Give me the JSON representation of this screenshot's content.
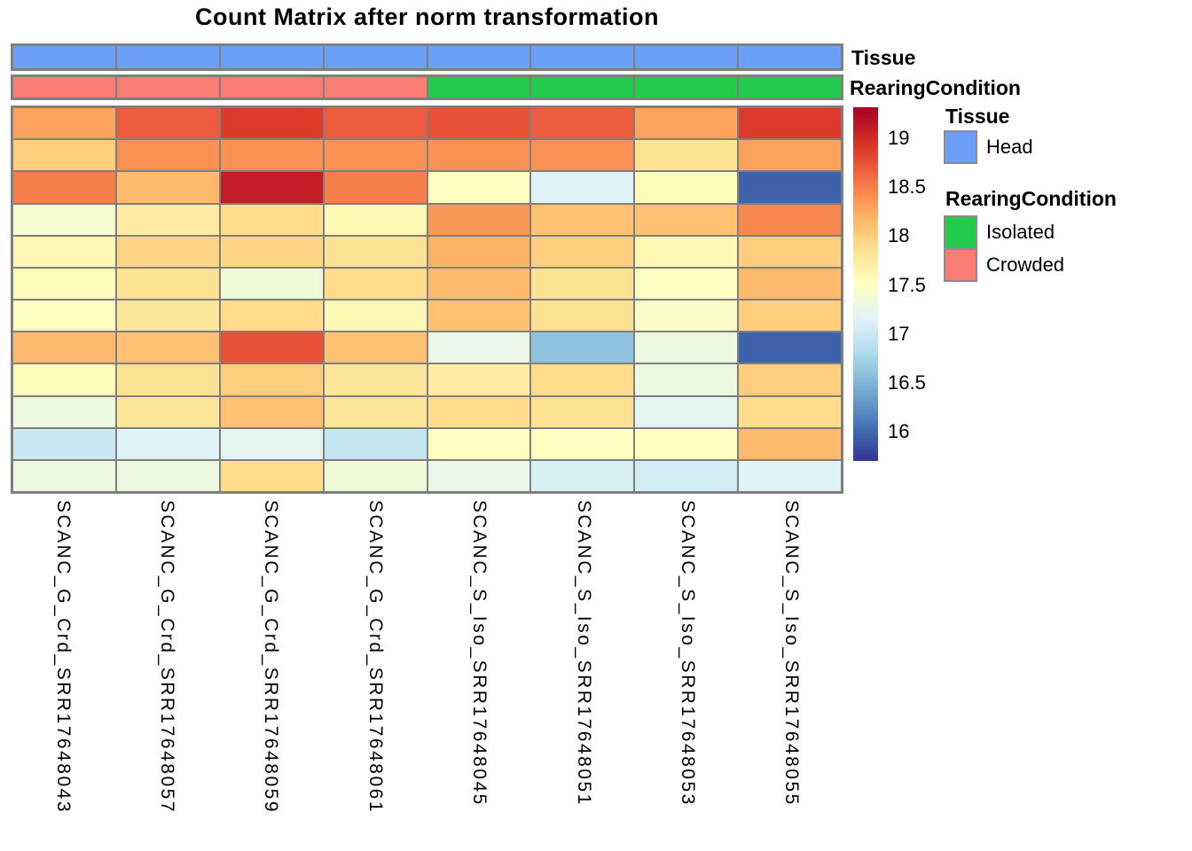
{
  "title": "Count Matrix after norm transformation",
  "annotation_labels": {
    "tissue": "Tissue",
    "rearing": "RearingCondition"
  },
  "annotation_colors": {
    "Head": "#6B9FF8",
    "Isolated": "#21CC4D",
    "Crowded": "#F97D72"
  },
  "grid_color": "#7F7F7F",
  "legend": {
    "tissue_title": "Tissue",
    "tissue_items": [
      {
        "label": "Head",
        "color": "#6B9FF8"
      }
    ],
    "rearing_title": "RearingCondition",
    "rearing_items": [
      {
        "label": "Isolated",
        "color": "#21CC4D"
      },
      {
        "label": "Crowded",
        "color": "#F97D72"
      }
    ]
  },
  "colorbar": {
    "tick_labels": [
      "19",
      "18.5",
      "18",
      "17.5",
      "17",
      "16.5",
      "16"
    ],
    "tick_values": [
      19,
      18.5,
      18,
      17.5,
      17,
      16.5,
      16
    ]
  },
  "chart_data": {
    "type": "heatmap",
    "title": "Count Matrix after norm transformation",
    "columns": [
      "SCANC_G_Crd_SRR17648043",
      "SCANC_G_Crd_SRR17648057",
      "SCANC_G_Crd_SRR17648059",
      "SCANC_G_Crd_SRR17648061",
      "SCANC_S_Iso_SRR17648045",
      "SCANC_S_Iso_SRR17648051",
      "SCANC_S_Iso_SRR17648053",
      "SCANC_S_Iso_SRR17648055"
    ],
    "column_annotations": {
      "Tissue": [
        "Head",
        "Head",
        "Head",
        "Head",
        "Head",
        "Head",
        "Head",
        "Head"
      ],
      "RearingCondition": [
        "Crowded",
        "Crowded",
        "Crowded",
        "Crowded",
        "Isolated",
        "Isolated",
        "Isolated",
        "Isolated"
      ]
    },
    "n_rows": 12,
    "rows_unlabeled": true,
    "values": [
      [
        18.3,
        18.7,
        18.9,
        18.7,
        18.75,
        18.7,
        18.3,
        18.9
      ],
      [
        18.0,
        18.4,
        18.4,
        18.4,
        18.4,
        18.4,
        17.85,
        18.3
      ],
      [
        18.5,
        18.15,
        19.1,
        18.5,
        17.5,
        17.15,
        17.55,
        15.95
      ],
      [
        17.4,
        17.75,
        17.9,
        17.6,
        18.35,
        18.1,
        18.1,
        18.45
      ],
      [
        17.6,
        17.95,
        17.95,
        17.85,
        18.2,
        18.0,
        17.6,
        18.0
      ],
      [
        17.55,
        17.85,
        17.35,
        17.9,
        18.15,
        17.85,
        17.5,
        18.15
      ],
      [
        17.5,
        17.8,
        17.9,
        17.6,
        18.1,
        17.85,
        17.45,
        18.0
      ],
      [
        18.15,
        18.1,
        18.75,
        18.1,
        17.25,
        16.6,
        17.3,
        15.95
      ],
      [
        17.55,
        17.85,
        18.0,
        17.8,
        17.75,
        17.9,
        17.3,
        18.0
      ],
      [
        17.3,
        17.8,
        18.1,
        17.8,
        17.9,
        17.85,
        17.2,
        17.9
      ],
      [
        17.0,
        17.15,
        17.2,
        16.95,
        17.5,
        17.5,
        17.5,
        18.15
      ],
      [
        17.3,
        17.3,
        17.9,
        17.35,
        17.25,
        17.1,
        17.05,
        17.15
      ]
    ],
    "scale": {
      "min": 15.7,
      "max": 19.32,
      "palette_name": "RdYlBu reversed",
      "palette_low_to_high": [
        "#313695",
        "#4575B4",
        "#74ADD1",
        "#ABD9E9",
        "#E0F3F8",
        "#FFFFBF",
        "#FEE090",
        "#FDAE61",
        "#F46D43",
        "#D73027",
        "#A50026"
      ]
    },
    "colorbar_ticks": [
      19,
      18.5,
      18,
      17.5,
      17,
      16.5,
      16
    ],
    "legend_position": "right",
    "grid": true
  }
}
